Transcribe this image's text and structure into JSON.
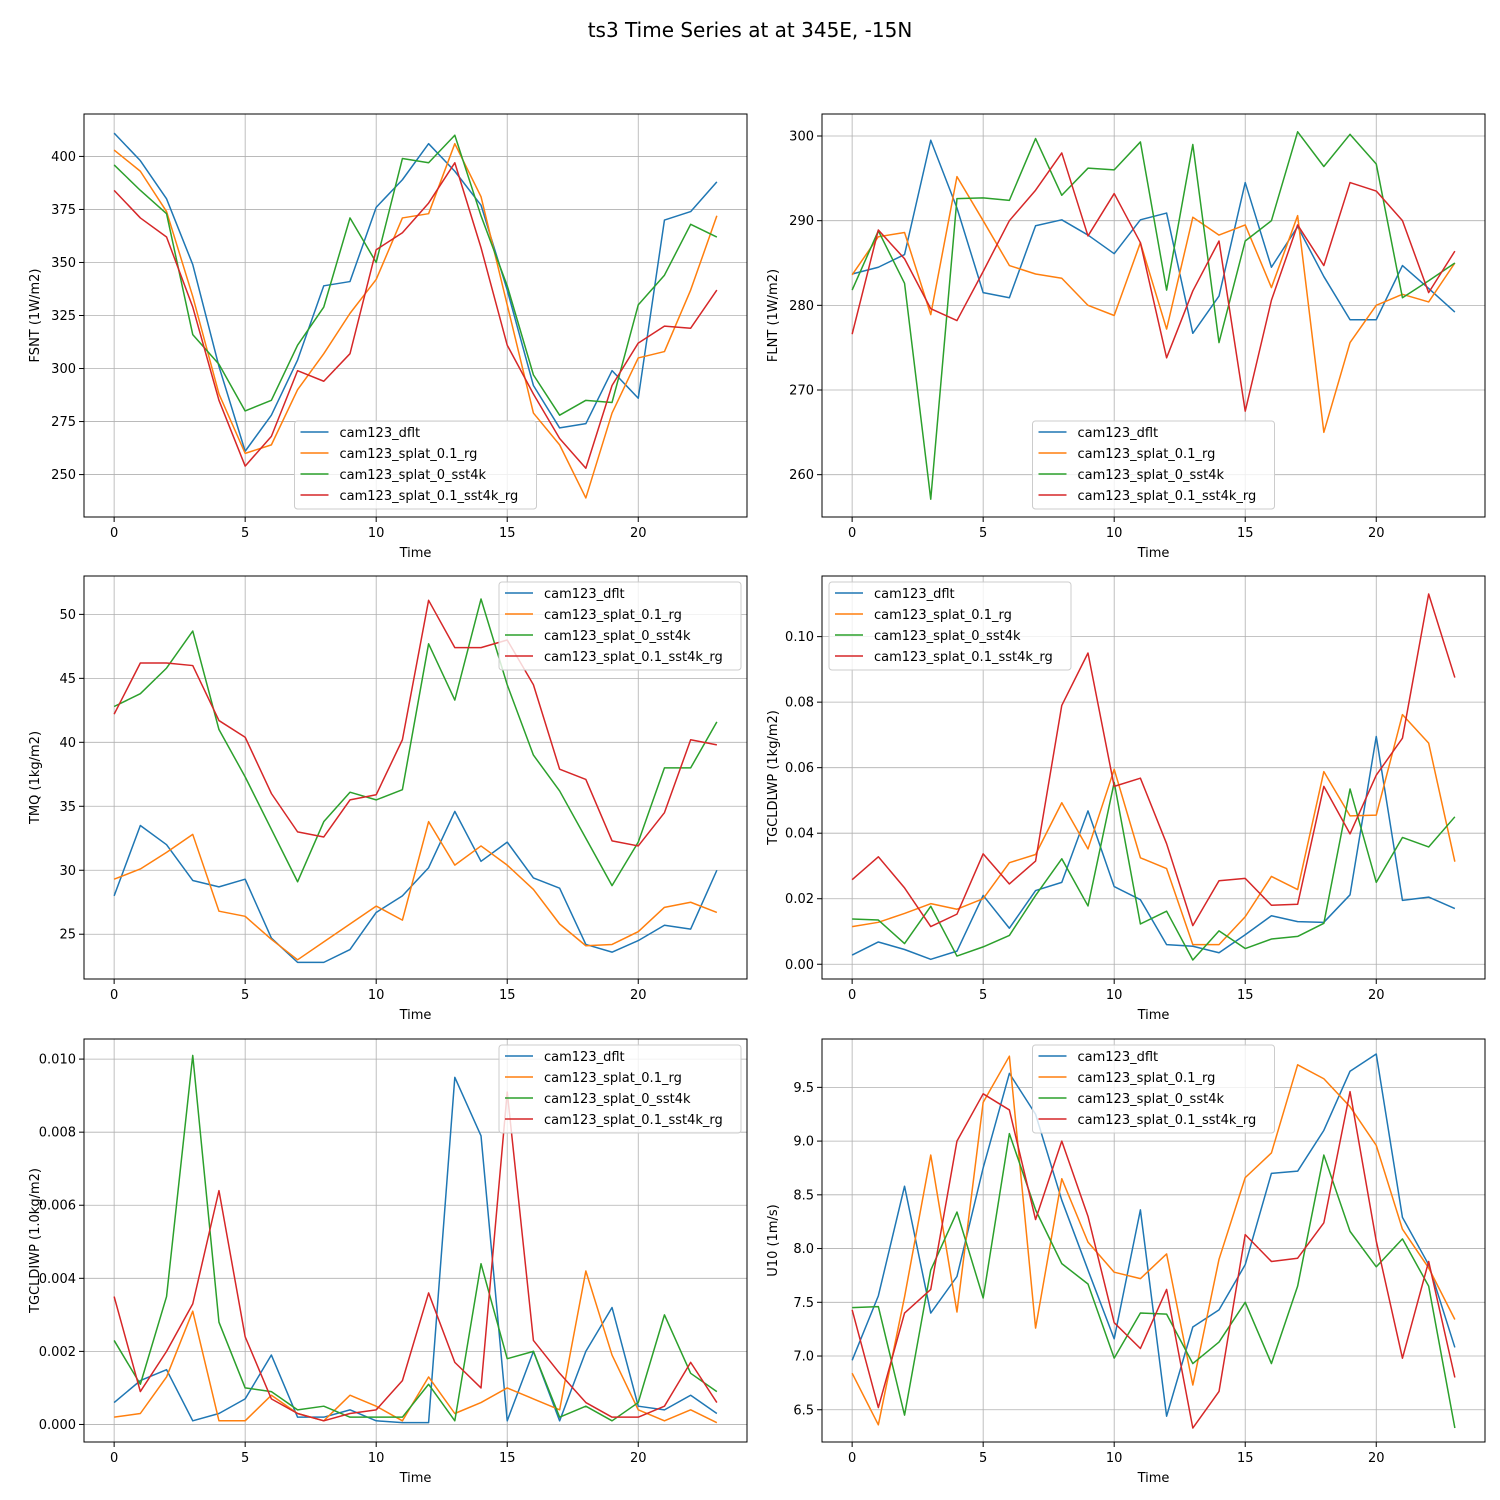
{
  "figure": {
    "title": "ts3 Time Series at at 345E, -15N"
  },
  "colors": {
    "cam123_dflt": "#1f77b4",
    "cam123_splat_0.1_rg": "#ff7f0e",
    "cam123_splat_0_sst4k": "#2ca02c",
    "cam123_splat_0.1_sst4k_rg": "#d62728",
    "grid": "#b0b0b0"
  },
  "chart_data": [
    {
      "type": "line",
      "title": "",
      "xlabel": "Time",
      "ylabel": "FSNT (1W/m2)",
      "xlim": [
        -1.15,
        24.15
      ],
      "ylim": [
        230,
        420
      ],
      "xticks": [
        0,
        5,
        10,
        15,
        20
      ],
      "xtick_labels": [
        "0",
        "5",
        "10",
        "15",
        "20"
      ],
      "yticks": [
        250,
        275,
        300,
        325,
        350,
        375,
        400
      ],
      "ytick_labels": [
        "250",
        "275",
        "300",
        "325",
        "350",
        "375",
        "400"
      ],
      "legend_position": "lower-center",
      "x": [
        0,
        1,
        2,
        3,
        4,
        5,
        6,
        7,
        8,
        9,
        10,
        11,
        12,
        13,
        14,
        15,
        16,
        17,
        18,
        19,
        20,
        21,
        22,
        23
      ],
      "series": [
        {
          "name": "cam123_dflt",
          "values": [
            411,
            398,
            380,
            349,
            301,
            261,
            278,
            304,
            339,
            341,
            376,
            389,
            406,
            393,
            377,
            337,
            292,
            272,
            274,
            299,
            286,
            370,
            374,
            388
          ]
        },
        {
          "name": "cam123_splat_0.1_rg",
          "values": [
            403,
            393,
            374,
            334,
            288,
            260,
            264,
            290,
            307,
            326,
            342,
            371,
            373,
            406,
            381,
            330,
            279,
            264,
            239,
            279,
            305,
            308,
            337,
            372
          ]
        },
        {
          "name": "cam123_splat_0_sst4k",
          "values": [
            396,
            384,
            373,
            316,
            302,
            280,
            285,
            311,
            329,
            371,
            350,
            399,
            397,
            410,
            372,
            339,
            297,
            278,
            285,
            284,
            330,
            344,
            368,
            362
          ]
        },
        {
          "name": "cam123_splat_0.1_sst4k_rg",
          "values": [
            384,
            371,
            362,
            329,
            285,
            254,
            268,
            299,
            294,
            307,
            356,
            364,
            378,
            397,
            357,
            311,
            288,
            267,
            253,
            292,
            312,
            320,
            319,
            337
          ]
        }
      ]
    },
    {
      "type": "line",
      "title": "",
      "xlabel": "Time",
      "ylabel": "FLNT (1W/m2)",
      "xlim": [
        -1.15,
        24.15
      ],
      "ylim": [
        255,
        302.6
      ],
      "xticks": [
        0,
        5,
        10,
        15,
        20
      ],
      "xtick_labels": [
        "0",
        "5",
        "10",
        "15",
        "20"
      ],
      "yticks": [
        260,
        270,
        280,
        290,
        300
      ],
      "ytick_labels": [
        "260",
        "270",
        "280",
        "290",
        "300"
      ],
      "legend_position": "lower-center",
      "x": [
        0,
        1,
        2,
        3,
        4,
        5,
        6,
        7,
        8,
        9,
        10,
        11,
        12,
        13,
        14,
        15,
        16,
        17,
        18,
        19,
        20,
        21,
        22,
        23
      ],
      "series": [
        {
          "name": "cam123_dflt",
          "values": [
            283.7,
            284.5,
            286.0,
            299.5,
            291.5,
            281.5,
            280.9,
            289.4,
            290.1,
            288.3,
            286.1,
            290.1,
            290.9,
            276.7,
            281.1,
            294.5,
            284.5,
            289.3,
            283.4,
            278.3,
            278.3,
            284.7,
            282.0,
            279.2
          ]
        },
        {
          "name": "cam123_splat_0.1_rg",
          "values": [
            283.6,
            288.1,
            288.6,
            278.9,
            295.2,
            290.0,
            284.7,
            283.7,
            283.2,
            280.0,
            278.8,
            287.4,
            277.2,
            290.4,
            288.3,
            289.5,
            282.1,
            290.6,
            265.0,
            275.6,
            280.0,
            281.3,
            280.4,
            285.0
          ]
        },
        {
          "name": "cam123_splat_0_sst4k",
          "values": [
            281.8,
            288.8,
            282.6,
            257.1,
            292.6,
            292.7,
            292.4,
            299.7,
            293.0,
            296.2,
            296.0,
            299.3,
            281.8,
            299.0,
            275.6,
            287.6,
            290.0,
            300.5,
            296.4,
            300.2,
            296.7,
            280.9,
            282.9,
            285.0
          ]
        },
        {
          "name": "cam123_splat_0.1_sst4k_rg",
          "values": [
            276.6,
            288.9,
            285.5,
            279.6,
            278.2,
            284.0,
            290.0,
            293.6,
            298.0,
            288.2,
            293.2,
            287.4,
            273.8,
            281.7,
            287.6,
            267.5,
            280.6,
            289.5,
            284.7,
            294.5,
            293.5,
            290.0,
            281.5,
            286.4
          ]
        }
      ]
    },
    {
      "type": "line",
      "title": "",
      "xlabel": "Time",
      "ylabel": "TMQ (1kg/m2)",
      "xlim": [
        -1.15,
        24.15
      ],
      "ylim": [
        21.5,
        53
      ],
      "xticks": [
        0,
        5,
        10,
        15,
        20
      ],
      "xtick_labels": [
        "0",
        "5",
        "10",
        "15",
        "20"
      ],
      "yticks": [
        25,
        30,
        35,
        40,
        45,
        50
      ],
      "ytick_labels": [
        "25",
        "30",
        "35",
        "40",
        "45",
        "50"
      ],
      "legend_position": "upper-right",
      "x": [
        0,
        1,
        2,
        3,
        4,
        5,
        6,
        7,
        8,
        9,
        10,
        11,
        12,
        13,
        14,
        15,
        16,
        17,
        18,
        19,
        20,
        21,
        22,
        23
      ],
      "series": [
        {
          "name": "cam123_dflt",
          "values": [
            28.0,
            33.5,
            32.0,
            29.2,
            28.7,
            29.3,
            24.7,
            22.8,
            22.8,
            23.8,
            26.7,
            28.0,
            30.2,
            34.6,
            30.7,
            32.2,
            29.4,
            28.6,
            24.2,
            23.6,
            24.5,
            25.7,
            25.4,
            30.0
          ]
        },
        {
          "name": "cam123_splat_0.1_rg",
          "values": [
            29.3,
            30.1,
            31.4,
            32.8,
            26.8,
            26.4,
            24.6,
            23.0,
            24.4,
            25.8,
            27.2,
            26.1,
            33.8,
            30.4,
            31.9,
            30.4,
            28.5,
            25.8,
            24.1,
            24.2,
            25.2,
            27.1,
            27.5,
            26.7
          ]
        },
        {
          "name": "cam123_splat_0_sst4k",
          "values": [
            42.8,
            43.8,
            45.8,
            48.7,
            41.0,
            37.3,
            33.2,
            29.1,
            33.8,
            36.1,
            35.5,
            36.3,
            47.7,
            43.3,
            51.2,
            44.5,
            39.0,
            36.2,
            32.5,
            28.8,
            32.2,
            38.0,
            38.0,
            41.6
          ]
        },
        {
          "name": "cam123_splat_0.1_sst4k_rg",
          "values": [
            42.2,
            46.2,
            46.2,
            46.0,
            41.7,
            40.4,
            36.0,
            33.0,
            32.6,
            35.5,
            35.9,
            40.2,
            51.1,
            47.4,
            47.4,
            48.0,
            44.5,
            37.9,
            37.1,
            32.3,
            31.9,
            34.5,
            40.2,
            39.8
          ]
        }
      ]
    },
    {
      "type": "line",
      "title": "",
      "xlabel": "Time",
      "ylabel": "TGCLDLWP (1kg/m2)",
      "xlim": [
        -1.15,
        24.15
      ],
      "ylim": [
        -0.0045,
        0.1185
      ],
      "xticks": [
        0,
        5,
        10,
        15,
        20
      ],
      "xtick_labels": [
        "0",
        "5",
        "10",
        "15",
        "20"
      ],
      "yticks": [
        0.0,
        0.02,
        0.04,
        0.06,
        0.08,
        0.1
      ],
      "ytick_labels": [
        "0.00",
        "0.02",
        "0.04",
        "0.06",
        "0.08",
        "0.10"
      ],
      "legend_position": "upper-left",
      "x": [
        0,
        1,
        2,
        3,
        4,
        5,
        6,
        7,
        8,
        9,
        10,
        11,
        12,
        13,
        14,
        15,
        16,
        17,
        18,
        19,
        20,
        21,
        22,
        23
      ],
      "series": [
        {
          "name": "cam123_dflt",
          "values": [
            0.0028,
            0.0068,
            0.0045,
            0.0015,
            0.004,
            0.021,
            0.011,
            0.0225,
            0.025,
            0.0468,
            0.0237,
            0.0197,
            0.006,
            0.0055,
            0.0035,
            0.009,
            0.0148,
            0.013,
            0.0128,
            0.0212,
            0.0695,
            0.0195,
            0.0205,
            0.017
          ]
        },
        {
          "name": "cam123_splat_0.1_rg",
          "values": [
            0.0115,
            0.0128,
            0.0155,
            0.0185,
            0.0168,
            0.02,
            0.031,
            0.0335,
            0.0493,
            0.0352,
            0.0595,
            0.0325,
            0.0292,
            0.006,
            0.006,
            0.0145,
            0.0268,
            0.0228,
            0.0588,
            0.0453,
            0.0455,
            0.0762,
            0.0675,
            0.0313
          ]
        },
        {
          "name": "cam123_splat_0_sst4k",
          "values": [
            0.0138,
            0.0135,
            0.0063,
            0.0177,
            0.0025,
            0.0053,
            0.0088,
            0.021,
            0.0322,
            0.0178,
            0.0555,
            0.0123,
            0.0162,
            0.0013,
            0.0102,
            0.0048,
            0.0077,
            0.0085,
            0.0125,
            0.0535,
            0.025,
            0.0387,
            0.0358,
            0.045
          ]
        },
        {
          "name": "cam123_splat_0.1_sst4k_rg",
          "values": [
            0.0258,
            0.0328,
            0.0233,
            0.0115,
            0.0153,
            0.0337,
            0.0245,
            0.0315,
            0.079,
            0.095,
            0.0543,
            0.0568,
            0.0368,
            0.0118,
            0.0255,
            0.0262,
            0.018,
            0.0183,
            0.0543,
            0.0398,
            0.0577,
            0.069,
            0.113,
            0.0875
          ]
        }
      ]
    },
    {
      "type": "line",
      "title": "",
      "xlabel": "Time",
      "ylabel": "TGCLDIWP (1.0kg/m2)",
      "xlim": [
        -1.15,
        24.15
      ],
      "ylim": [
        -0.00048,
        0.01055
      ],
      "xticks": [
        0,
        5,
        10,
        15,
        20
      ],
      "xtick_labels": [
        "0",
        "5",
        "10",
        "15",
        "20"
      ],
      "yticks": [
        0.0,
        0.002,
        0.004,
        0.006,
        0.008,
        0.01
      ],
      "ytick_labels": [
        "0.000",
        "0.002",
        "0.004",
        "0.006",
        "0.008",
        "0.010"
      ],
      "legend_position": "upper-right",
      "x": [
        0,
        1,
        2,
        3,
        4,
        5,
        6,
        7,
        8,
        9,
        10,
        11,
        12,
        13,
        14,
        15,
        16,
        17,
        18,
        19,
        20,
        21,
        22,
        23
      ],
      "series": [
        {
          "name": "cam123_dflt",
          "values": [
            0.0006,
            0.0012,
            0.0015,
            0.0001,
            0.0003,
            0.0007,
            0.0019,
            0.0002,
            0.0002,
            0.0004,
            0.0001,
            5e-05,
            5e-05,
            0.0095,
            0.0079,
            0.0001,
            0.002,
            0.0001,
            0.002,
            0.0032,
            0.0005,
            0.0004,
            0.0008,
            0.0003
          ]
        },
        {
          "name": "cam123_splat_0.1_rg",
          "values": [
            0.0002,
            0.0003,
            0.0013,
            0.0031,
            0.0001,
            0.0001,
            0.0008,
            0.0003,
            0.0001,
            0.0008,
            0.0005,
            0.0001,
            0.0013,
            0.0003,
            0.0006,
            0.001,
            0.0007,
            0.0004,
            0.0042,
            0.0019,
            0.0004,
            0.0001,
            0.0004,
            5e-05
          ]
        },
        {
          "name": "cam123_splat_0_sst4k",
          "values": [
            0.0023,
            0.0011,
            0.0035,
            0.0101,
            0.0028,
            0.001,
            0.0009,
            0.0004,
            0.0005,
            0.0002,
            0.0002,
            0.0002,
            0.0011,
            0.0001,
            0.0044,
            0.0018,
            0.002,
            0.0002,
            0.0005,
            0.0001,
            0.0006,
            0.003,
            0.0014,
            0.0009
          ]
        },
        {
          "name": "cam123_splat_0.1_sst4k_rg",
          "values": [
            0.0035,
            0.0009,
            0.002,
            0.0033,
            0.0064,
            0.0024,
            0.0007,
            0.0003,
            0.0001,
            0.0003,
            0.0004,
            0.0012,
            0.0036,
            0.0017,
            0.001,
            0.0091,
            0.0023,
            0.0014,
            0.0006,
            0.0002,
            0.0002,
            0.0005,
            0.0017,
            0.0006
          ]
        }
      ]
    },
    {
      "type": "line",
      "title": "",
      "xlabel": "Time",
      "ylabel": "U10 (1m/s)",
      "xlim": [
        -1.15,
        24.15
      ],
      "ylim": [
        6.2,
        9.95
      ],
      "xticks": [
        0,
        5,
        10,
        15,
        20
      ],
      "xtick_labels": [
        "0",
        "5",
        "10",
        "15",
        "20"
      ],
      "yticks": [
        6.5,
        7.0,
        7.5,
        8.0,
        8.5,
        9.0,
        9.5
      ],
      "ytick_labels": [
        "6.5",
        "7.0",
        "7.5",
        "8.0",
        "8.5",
        "9.0",
        "9.5"
      ],
      "legend_position": "upper-center",
      "x": [
        0,
        1,
        2,
        3,
        4,
        5,
        6,
        7,
        8,
        9,
        10,
        11,
        12,
        13,
        14,
        15,
        16,
        17,
        18,
        19,
        20,
        21,
        22,
        23
      ],
      "series": [
        {
          "name": "cam123_dflt",
          "values": [
            6.96,
            7.56,
            8.58,
            7.4,
            7.74,
            8.75,
            9.63,
            9.25,
            8.45,
            7.8,
            7.16,
            8.36,
            6.44,
            7.27,
            7.43,
            7.85,
            8.7,
            8.72,
            9.1,
            9.65,
            9.81,
            8.29,
            7.85,
            7.08
          ]
        },
        {
          "name": "cam123_splat_0.1_rg",
          "values": [
            6.84,
            6.36,
            7.55,
            8.87,
            7.41,
            9.36,
            9.79,
            7.26,
            8.65,
            8.06,
            7.78,
            7.72,
            7.95,
            6.73,
            7.9,
            8.66,
            8.89,
            9.71,
            9.58,
            9.32,
            8.96,
            8.18,
            7.82,
            7.34
          ]
        },
        {
          "name": "cam123_splat_0_sst4k",
          "values": [
            7.45,
            7.46,
            6.45,
            7.8,
            8.34,
            7.54,
            9.07,
            8.36,
            7.86,
            7.67,
            6.98,
            7.4,
            7.39,
            6.93,
            7.13,
            7.5,
            6.93,
            7.65,
            8.87,
            8.16,
            7.83,
            8.09,
            7.65,
            6.33
          ]
        },
        {
          "name": "cam123_splat_0.1_sst4k_rg",
          "values": [
            7.43,
            6.52,
            7.4,
            7.62,
            9.0,
            9.44,
            9.29,
            8.27,
            9.0,
            8.3,
            7.31,
            7.07,
            7.62,
            6.33,
            6.67,
            8.13,
            7.88,
            7.91,
            8.24,
            9.46,
            8.07,
            6.98,
            7.88,
            6.8
          ]
        }
      ]
    }
  ]
}
